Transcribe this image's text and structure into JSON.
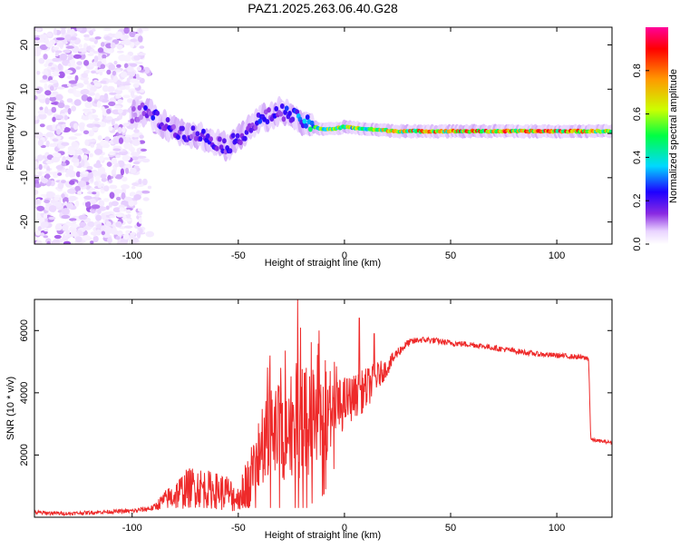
{
  "title": "PAZ1.2025.263.06.40.G28",
  "chart_data": [
    {
      "type": "heatmap",
      "title": "PAZ1.2025.263.06.40.G28",
      "xlabel": "Height of straight line (km)",
      "ylabel": "Frequency (Hz)",
      "xlim": [
        -146,
        126
      ],
      "ylim": [
        -25,
        24
      ],
      "xticks": [
        -100,
        -50,
        0,
        50,
        100
      ],
      "yticks": [
        -20,
        -10,
        0,
        10,
        20
      ],
      "colorbar": {
        "label": "Normalized spectral amplitude",
        "range": [
          0.0,
          1.0
        ],
        "ticks": [
          0.0,
          0.2,
          0.4,
          0.6,
          0.8
        ],
        "tick_labels": [
          "0.0",
          "0.2",
          "0.4",
          "0.6",
          "0.8"
        ],
        "colormap": [
          "#ffffff",
          "#e9d3ff",
          "#8a2be2",
          "#1e00ff",
          "#00d9ff",
          "#00ff44",
          "#ccff00",
          "#ff9900",
          "#ff0000",
          "#ff0099"
        ]
      },
      "noise_region_x": [
        -146,
        -95
      ],
      "ridge": {
        "description_free": true,
        "x": [
          -100,
          -95,
          -90,
          -85,
          -80,
          -75,
          -70,
          -65,
          -60,
          -55,
          -50,
          -45,
          -40,
          -35,
          -30,
          -25,
          -20,
          -15,
          -10,
          -5,
          0,
          10,
          25,
          50,
          75,
          100,
          126
        ],
        "frequency": [
          4,
          5,
          4,
          2,
          1,
          0,
          0,
          -1,
          -2,
          -3,
          -1,
          1,
          3,
          4,
          5,
          4,
          3,
          1.5,
          1,
          1,
          1.5,
          1,
          0.5,
          0.5,
          0.5,
          0.5,
          0.5
        ],
        "peak_amplitude": [
          0.2,
          0.3,
          0.35,
          0.35,
          0.3,
          0.3,
          0.3,
          0.35,
          0.3,
          0.35,
          0.3,
          0.35,
          0.35,
          0.3,
          0.35,
          0.35,
          0.45,
          0.6,
          0.7,
          0.7,
          0.7,
          0.75,
          0.8,
          0.85,
          0.9,
          0.9,
          0.8
        ]
      }
    },
    {
      "type": "line",
      "xlabel": "Height of straight line (km)",
      "ylabel": "SNR (10 * v/v)",
      "xlim": [
        -146,
        126
      ],
      "ylim": [
        0,
        7000
      ],
      "xticks": [
        -100,
        -50,
        0,
        50,
        100
      ],
      "yticks": [
        2000,
        4000,
        6000
      ],
      "series": [
        {
          "name": "SNR",
          "color": "#ee2a2a",
          "x": [
            -146,
            -130,
            -110,
            -100,
            -90,
            -85,
            -80,
            -75,
            -70,
            -65,
            -60,
            -55,
            -50,
            -45,
            -40,
            -35,
            -30,
            -25,
            -20,
            -15,
            -10,
            -5,
            0,
            5,
            10,
            15,
            20,
            25,
            30,
            35,
            40,
            50,
            60,
            70,
            80,
            90,
            100,
            110,
            115,
            116,
            120,
            126
          ],
          "values": [
            150,
            120,
            180,
            200,
            300,
            550,
            700,
            900,
            1000,
            900,
            850,
            750,
            600,
            1200,
            2000,
            2600,
            2800,
            3000,
            3200,
            3100,
            2900,
            3300,
            3700,
            3900,
            4100,
            4500,
            4800,
            5300,
            5600,
            5700,
            5700,
            5600,
            5550,
            5450,
            5350,
            5250,
            5200,
            5150,
            5100,
            2500,
            2450,
            2400
          ],
          "spread": [
            100,
            80,
            90,
            100,
            150,
            400,
            700,
            900,
            1000,
            900,
            850,
            900,
            600,
            1300,
            1800,
            2200,
            2400,
            2600,
            2800,
            2400,
            2000,
            1600,
            1200,
            1000,
            1000,
            700,
            400,
            250,
            180,
            150,
            150,
            140,
            130,
            130,
            130,
            120,
            120,
            120,
            120,
            80,
            80,
            80
          ],
          "peaks": [
            {
              "x": -35,
              "y": 5200
            },
            {
              "x": -30,
              "y": 4800
            },
            {
              "x": -22,
              "y": 7000
            },
            {
              "x": -18,
              "y": 4800
            },
            {
              "x": -12,
              "y": 6000
            },
            {
              "x": 7,
              "y": 6400
            },
            {
              "x": 14,
              "y": 5900
            }
          ]
        }
      ]
    }
  ]
}
